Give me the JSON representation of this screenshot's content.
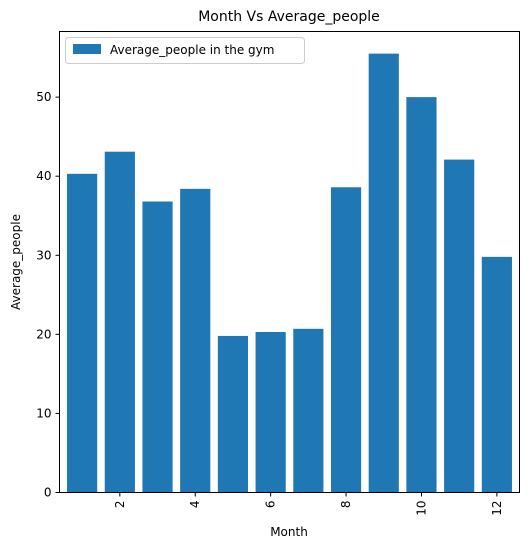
{
  "chart_data": {
    "type": "bar",
    "title": "Month Vs Average_people",
    "xlabel": "Month",
    "ylabel": "Average_people",
    "categories": [
      1,
      2,
      3,
      4,
      5,
      6,
      7,
      8,
      9,
      10,
      11,
      12
    ],
    "series": [
      {
        "name": "Average_people in the gym",
        "color": "#1f77b4",
        "values": [
          40.3,
          43.1,
          36.8,
          38.4,
          19.8,
          20.3,
          20.7,
          38.6,
          55.5,
          50.0,
          42.1,
          29.8
        ]
      }
    ],
    "x_ticks": [
      2,
      4,
      6,
      8,
      10,
      12
    ],
    "x_tick_rotation": "vertical",
    "y_ticks": [
      0,
      10,
      20,
      30,
      40,
      50
    ],
    "ylim": [
      0,
      58.3
    ],
    "xlim": [
      0.4,
      12.6
    ],
    "legend_position": "top-left",
    "grid": false
  }
}
